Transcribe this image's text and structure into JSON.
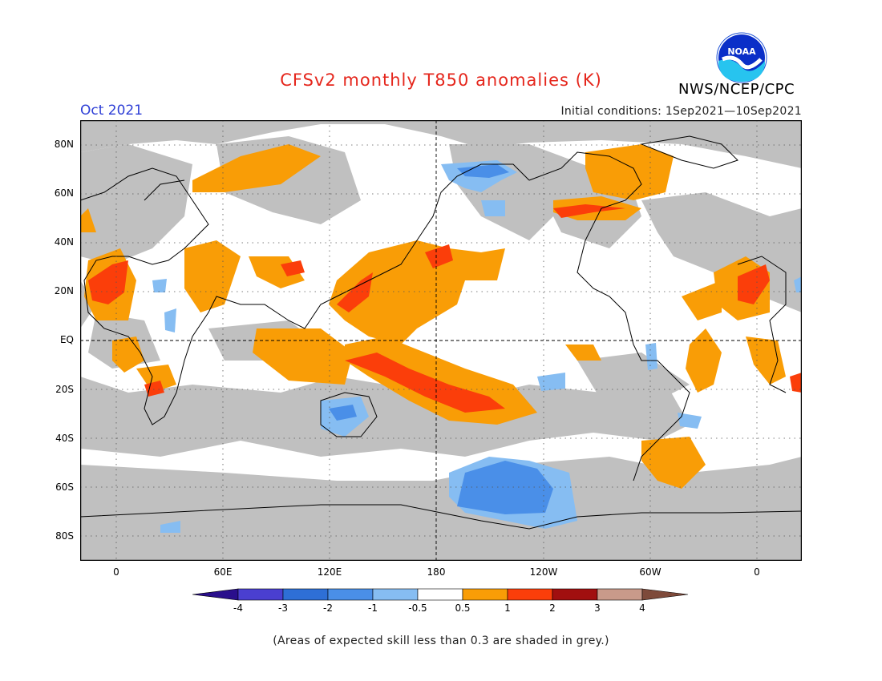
{
  "header": {
    "title": "CFSv2 monthly T850 anomalies (K)",
    "agency": "NWS/NCEP/CPC",
    "logo_text": "NOAA",
    "month": "Oct 2021",
    "initial_conditions": "Initial conditions: 1Sep2021—10Sep2021"
  },
  "axes": {
    "lat_labels": [
      "80N",
      "60N",
      "40N",
      "20N",
      "EQ",
      "20S",
      "40S",
      "60S",
      "80S"
    ],
    "lon_labels": [
      "0",
      "60E",
      "120E",
      "180",
      "120W",
      "60W",
      "0"
    ]
  },
  "colorbar": {
    "labels": [
      "-4",
      "-3",
      "-2",
      "-1",
      "-0.5",
      "0.5",
      "1",
      "2",
      "3",
      "4"
    ],
    "colors": [
      "#2a0f8c",
      "#4a3fd0",
      "#2e6fd6",
      "#4a8fe8",
      "#86bdf2",
      "#ffffff",
      "#f99d06",
      "#fb3e0a",
      "#a10f0f",
      "#c99a8a",
      "#7e4a3a"
    ]
  },
  "note": "(Areas of expected skill less than 0.3 are shaded in grey.)",
  "colors": {
    "grey": "#c0c0c0",
    "orange": "#f99d06",
    "red": "#fb3e0a",
    "blue": "#4a8fe8",
    "lightblue": "#86bdf2"
  }
}
